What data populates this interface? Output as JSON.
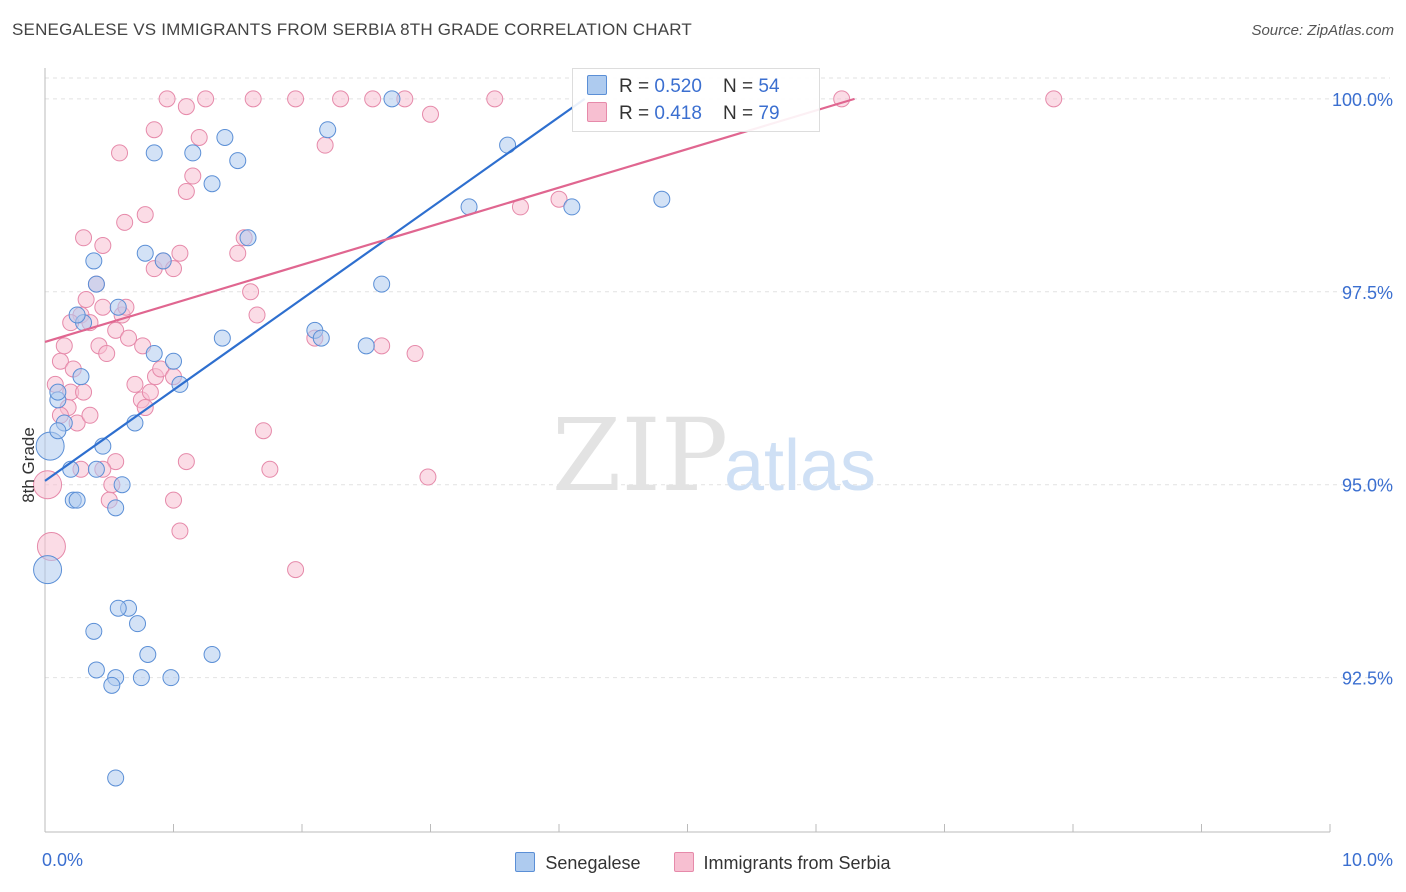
{
  "title": "SENEGALESE VS IMMIGRANTS FROM SERBIA 8TH GRADE CORRELATION CHART",
  "source": "Source: ZipAtlas.com",
  "watermark": {
    "zip": "ZIP",
    "atlas": "atlas"
  },
  "colors": {
    "blue": "#5b8fd6",
    "blue_fill": "#aecbef",
    "pink": "#e68aaa",
    "pink_fill": "#f7bfd1",
    "blue_line": "#2e6fcf",
    "pink_line": "#e06690",
    "axis_label": "#3b6fd0"
  },
  "legend": {
    "blue": {
      "r_label": "R = ",
      "r_value": "0.520",
      "n_label": "N = ",
      "n_value": "54"
    },
    "pink": {
      "r_label": "R = ",
      "r_value": "0.418",
      "n_label": "N = ",
      "n_value": "79"
    }
  },
  "chart_data": {
    "type": "scatter",
    "title": "SENEGALESE VS IMMIGRANTS FROM SERBIA 8TH GRADE CORRELATION CHART",
    "xlabel": "",
    "ylabel": "8th Grade",
    "xlim": [
      0,
      10
    ],
    "ylim": [
      90.5,
      100.4
    ],
    "x_tick_labels": [
      "0.0%",
      "10.0%"
    ],
    "y_ticks": [
      92.5,
      95.0,
      97.5,
      100.0
    ],
    "y_tick_labels": [
      "92.5%",
      "95.0%",
      "97.5%",
      "100.0%"
    ],
    "series": [
      {
        "name": "Senegalese",
        "color": "blue",
        "trendline": [
          [
            0.0,
            95.05
          ],
          [
            4.2,
            100.0
          ]
        ],
        "points": [
          [
            0.02,
            93.9
          ],
          [
            0.04,
            95.5
          ],
          [
            0.1,
            96.1
          ],
          [
            0.15,
            95.8
          ],
          [
            0.1,
            95.7
          ],
          [
            0.2,
            95.2
          ],
          [
            0.22,
            94.8
          ],
          [
            0.28,
            96.4
          ],
          [
            0.3,
            97.1
          ],
          [
            0.25,
            97.2
          ],
          [
            0.38,
            97.9
          ],
          [
            0.4,
            97.6
          ],
          [
            0.45,
            95.5
          ],
          [
            0.4,
            95.2
          ],
          [
            0.55,
            94.7
          ],
          [
            0.6,
            95.0
          ],
          [
            0.7,
            95.8
          ],
          [
            0.85,
            96.7
          ],
          [
            1.0,
            96.6
          ],
          [
            1.05,
            96.3
          ],
          [
            0.78,
            98.0
          ],
          [
            0.92,
            97.9
          ],
          [
            0.85,
            99.3
          ],
          [
            1.15,
            99.3
          ],
          [
            1.3,
            98.9
          ],
          [
            1.4,
            99.5
          ],
          [
            1.5,
            99.2
          ],
          [
            1.58,
            98.2
          ],
          [
            1.38,
            96.9
          ],
          [
            2.1,
            97.0
          ],
          [
            2.15,
            96.9
          ],
          [
            2.2,
            99.6
          ],
          [
            2.5,
            96.8
          ],
          [
            2.62,
            97.6
          ],
          [
            2.7,
            100.0
          ],
          [
            3.3,
            98.6
          ],
          [
            3.6,
            99.4
          ],
          [
            4.1,
            98.6
          ],
          [
            4.8,
            98.7
          ],
          [
            0.57,
            97.3
          ],
          [
            0.65,
            93.4
          ],
          [
            0.57,
            93.4
          ],
          [
            0.72,
            93.2
          ],
          [
            0.38,
            93.1
          ],
          [
            0.4,
            92.6
          ],
          [
            0.55,
            92.5
          ],
          [
            0.75,
            92.5
          ],
          [
            0.52,
            92.4
          ],
          [
            0.98,
            92.5
          ],
          [
            0.8,
            92.8
          ],
          [
            1.3,
            92.8
          ],
          [
            0.55,
            91.2
          ],
          [
            0.25,
            94.8
          ],
          [
            0.1,
            96.2
          ]
        ]
      },
      {
        "name": "Immigrants from Serbia",
        "color": "pink",
        "trendline": [
          [
            0.0,
            96.85
          ],
          [
            6.3,
            100.0
          ]
        ],
        "points": [
          [
            0.02,
            95.0
          ],
          [
            0.05,
            94.2
          ],
          [
            0.08,
            96.3
          ],
          [
            0.12,
            96.6
          ],
          [
            0.15,
            96.8
          ],
          [
            0.2,
            96.2
          ],
          [
            0.22,
            96.5
          ],
          [
            0.28,
            97.2
          ],
          [
            0.32,
            97.4
          ],
          [
            0.35,
            97.1
          ],
          [
            0.42,
            96.8
          ],
          [
            0.45,
            97.3
          ],
          [
            0.48,
            96.7
          ],
          [
            0.55,
            97.0
          ],
          [
            0.6,
            97.2
          ],
          [
            0.65,
            96.9
          ],
          [
            0.7,
            96.3
          ],
          [
            0.75,
            96.1
          ],
          [
            0.78,
            96.0
          ],
          [
            0.82,
            96.2
          ],
          [
            0.86,
            96.4
          ],
          [
            0.9,
            96.5
          ],
          [
            0.3,
            98.2
          ],
          [
            0.45,
            98.1
          ],
          [
            0.62,
            98.4
          ],
          [
            0.78,
            98.5
          ],
          [
            0.85,
            97.8
          ],
          [
            0.92,
            97.9
          ],
          [
            1.0,
            97.8
          ],
          [
            1.05,
            98.0
          ],
          [
            1.1,
            98.8
          ],
          [
            1.15,
            99.0
          ],
          [
            1.2,
            99.5
          ],
          [
            0.85,
            99.6
          ],
          [
            0.58,
            99.3
          ],
          [
            1.5,
            98.0
          ],
          [
            1.55,
            98.2
          ],
          [
            1.6,
            97.5
          ],
          [
            1.65,
            97.2
          ],
          [
            1.7,
            95.7
          ],
          [
            1.75,
            95.2
          ],
          [
            1.1,
            95.3
          ],
          [
            1.0,
            94.8
          ],
          [
            1.05,
            94.4
          ],
          [
            0.55,
            95.3
          ],
          [
            0.45,
            95.2
          ],
          [
            0.52,
            95.0
          ],
          [
            0.5,
            94.8
          ],
          [
            0.25,
            95.8
          ],
          [
            0.35,
            95.9
          ],
          [
            0.18,
            96.0
          ],
          [
            0.12,
            95.9
          ],
          [
            0.28,
            95.2
          ],
          [
            1.95,
            100.0
          ],
          [
            1.62,
            100.0
          ],
          [
            1.25,
            100.0
          ],
          [
            0.95,
            100.0
          ],
          [
            1.1,
            99.9
          ],
          [
            2.3,
            100.0
          ],
          [
            2.55,
            100.0
          ],
          [
            2.8,
            100.0
          ],
          [
            3.5,
            100.0
          ],
          [
            3.7,
            98.6
          ],
          [
            4.0,
            98.7
          ],
          [
            3.0,
            99.8
          ],
          [
            2.1,
            96.9
          ],
          [
            2.18,
            99.4
          ],
          [
            2.62,
            96.8
          ],
          [
            2.88,
            96.7
          ],
          [
            2.98,
            95.1
          ],
          [
            1.95,
            93.9
          ],
          [
            6.2,
            100.0
          ],
          [
            7.85,
            100.0
          ],
          [
            1.0,
            96.4
          ],
          [
            0.76,
            96.8
          ],
          [
            0.3,
            96.2
          ],
          [
            0.2,
            97.1
          ],
          [
            0.4,
            97.6
          ],
          [
            0.63,
            97.3
          ]
        ]
      }
    ]
  },
  "bottom_legend": [
    "Senegalese",
    "Immigrants from Serbia"
  ]
}
